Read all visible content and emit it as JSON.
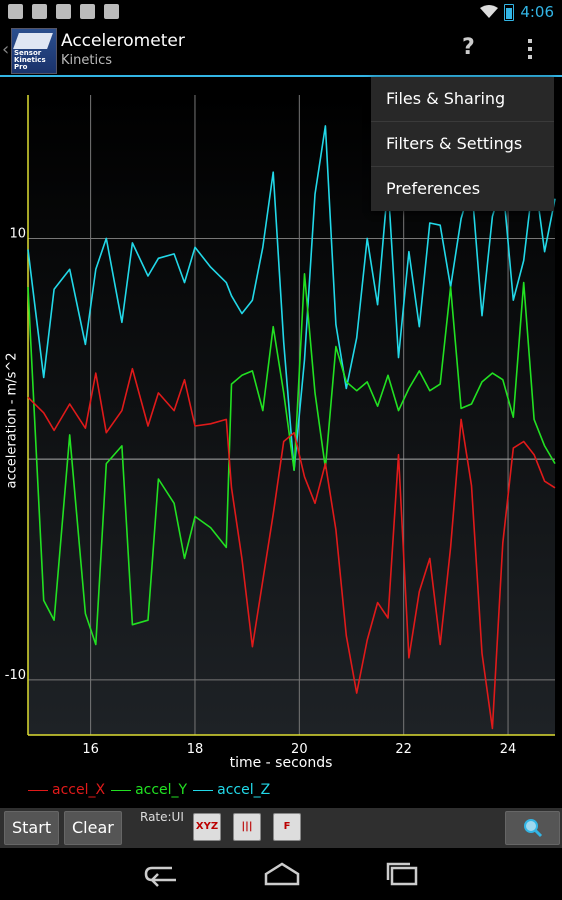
{
  "status_bar": {
    "time": "4:06",
    "battery_icon": "battery-charging-icon",
    "wifi_icon": "wifi-icon"
  },
  "action_bar": {
    "title": "Accelerometer",
    "subtitle": "Kinetics",
    "app_icon_text": "Sensor Kinetics Pro",
    "help_label": "?"
  },
  "menu": {
    "items": [
      {
        "label": "Files & Sharing"
      },
      {
        "label": "Filters & Settings"
      },
      {
        "label": "Preferences"
      }
    ]
  },
  "toolbar": {
    "start_label": "Start",
    "clear_label": "Clear",
    "rate_label": "Rate:UI"
  },
  "colors": {
    "accent": "#33b5e5",
    "x": "#e01a1a",
    "y": "#22e022",
    "z": "#22d8e8"
  },
  "chart_data": {
    "type": "line",
    "xlabel": "time - seconds",
    "ylabel": "acceleration - m/s^2",
    "xlim": [
      14.8,
      24.9
    ],
    "ylim": [
      -12.5,
      16.5
    ],
    "x_ticks": [
      16,
      18,
      20,
      22,
      24
    ],
    "y_ticks": [
      10,
      -10
    ],
    "grid": true,
    "legend_position": "bottom-left",
    "x": [
      14.8,
      15.1,
      15.3,
      15.6,
      15.9,
      16.1,
      16.3,
      16.6,
      16.8,
      17.1,
      17.3,
      17.6,
      17.8,
      18.0,
      18.3,
      18.6,
      18.7,
      18.9,
      19.1,
      19.3,
      19.5,
      19.7,
      19.9,
      20.1,
      20.3,
      20.5,
      20.7,
      20.9,
      21.1,
      21.3,
      21.5,
      21.7,
      21.9,
      22.1,
      22.3,
      22.5,
      22.7,
      22.9,
      23.1,
      23.3,
      23.5,
      23.7,
      23.9,
      24.1,
      24.3,
      24.5,
      24.7,
      24.9
    ],
    "series": [
      {
        "name": "accel_X",
        "values": [
          2.8,
          2.1,
          1.3,
          2.5,
          1.4,
          3.9,
          1.2,
          2.2,
          4.1,
          1.5,
          3.0,
          2.2,
          3.6,
          1.5,
          1.6,
          1.8,
          -1.3,
          -4.5,
          -8.5,
          -5.5,
          -2.5,
          0.8,
          1.2,
          -0.8,
          -2.0,
          -0.2,
          -3.2,
          -8.0,
          -10.6,
          -8.2,
          -6.5,
          -7.2,
          0.2,
          -9.0,
          -6.0,
          -4.5,
          -8.4,
          -4.0,
          1.8,
          -1.2,
          -8.8,
          -12.2,
          -3.8,
          0.5,
          0.8,
          0.2,
          -1.0,
          -1.3
        ]
      },
      {
        "name": "accel_Y",
        "values": [
          7.8,
          -6.4,
          -7.3,
          1.1,
          -7.0,
          -8.4,
          -0.2,
          0.6,
          -7.5,
          -7.3,
          -0.9,
          -2.0,
          -4.5,
          -2.6,
          -3.1,
          -4.0,
          3.4,
          3.8,
          4.0,
          2.2,
          6.0,
          3.0,
          -0.5,
          8.4,
          3.0,
          -0.4,
          5.1,
          3.5,
          3.1,
          3.5,
          2.4,
          3.8,
          2.2,
          3.2,
          4.0,
          3.1,
          3.4,
          7.8,
          2.3,
          2.5,
          3.5,
          3.9,
          3.6,
          1.9,
          8.0,
          1.8,
          0.6,
          -0.2
        ]
      },
      {
        "name": "accel_Z",
        "values": [
          9.5,
          3.7,
          7.7,
          8.6,
          5.2,
          8.6,
          10.0,
          6.2,
          9.8,
          8.3,
          9.1,
          9.3,
          8.0,
          9.6,
          8.7,
          8.0,
          7.4,
          6.6,
          7.2,
          9.6,
          13.0,
          5.3,
          -0.5,
          4.5,
          12.0,
          15.1,
          6.1,
          3.2,
          5.5,
          10.0,
          7.0,
          12.5,
          4.6,
          9.4,
          6.0,
          10.7,
          10.6,
          7.8,
          10.9,
          12.5,
          6.5,
          11.0,
          12.5,
          7.2,
          9.0,
          13.0,
          9.4,
          11.8
        ]
      }
    ]
  }
}
